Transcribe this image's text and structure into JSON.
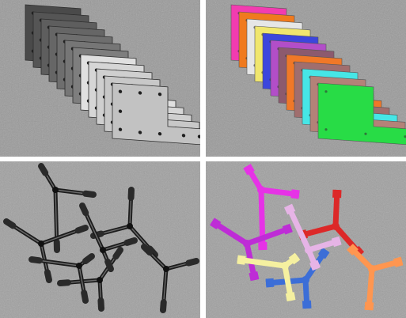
{
  "panels": [
    {
      "id": "grayscale-brackets",
      "style": "grayscale"
    },
    {
      "id": "segmented-brackets",
      "style": "color-masks"
    },
    {
      "id": "grayscale-hex-wrenches",
      "style": "grayscale"
    },
    {
      "id": "segmented-hex-wrenches",
      "style": "color-masks"
    }
  ],
  "colors": {
    "background_gray": "#9c9c9c",
    "bracket_masks": [
      "#f23cb0",
      "#f07a1e",
      "#e6e6e6",
      "#f0e66e",
      "#3c46dc",
      "#b24ec8",
      "#8c5a6e",
      "#f07828",
      "#a06e6e",
      "#46e6e6",
      "#b48278",
      "#28dc46"
    ],
    "wrench_masks": [
      "#e632e6",
      "#be2cd6",
      "#dc2828",
      "#3c6ed7",
      "#ff9650",
      "#e6b4e6",
      "#f5f0a0",
      "#50e6f0",
      "#a03cc8",
      "#6e28dc"
    ]
  }
}
